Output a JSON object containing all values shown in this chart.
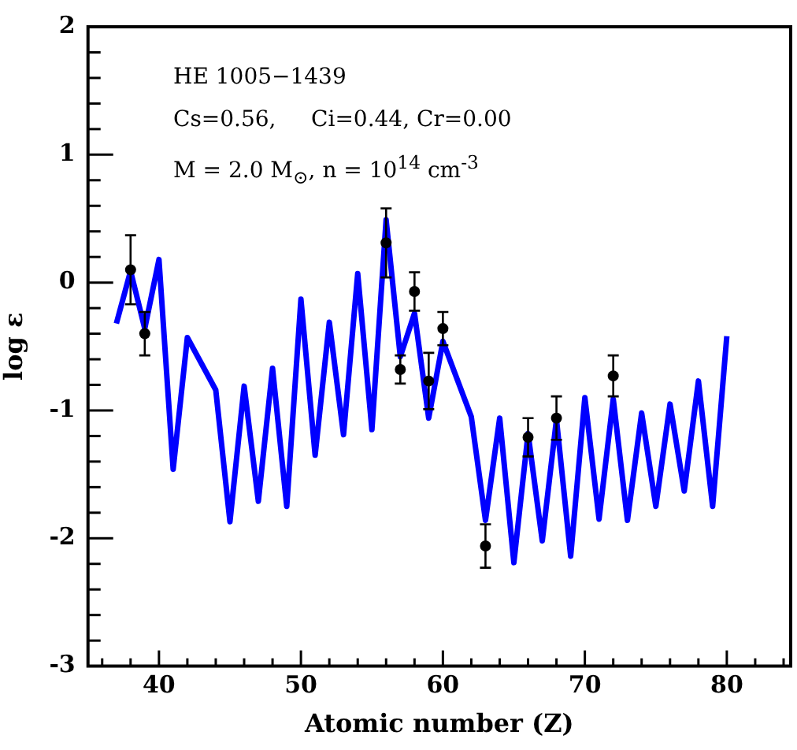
{
  "chart_data": {
    "type": "line",
    "xlabel": "Atomic number (Z)",
    "ylabel": "log ε",
    "annotations": [
      "HE 1005−1439",
      "Cs=0.56,     Ci=0.44, Cr=0.00",
      "M = 2.0 M$_{⊙}$, n = 10$^{14}$ cm$^{-3}$"
    ],
    "xlim": [
      35,
      84.5
    ],
    "ylim": [
      -3,
      2
    ],
    "xticks": [
      {
        "value": 36,
        "label": null
      },
      {
        "value": 38,
        "label": null
      },
      40,
      {
        "value": 42,
        "label": null
      },
      {
        "value": 44,
        "label": null
      },
      {
        "value": 46,
        "label": null
      },
      {
        "value": 48,
        "label": null
      },
      50,
      {
        "value": 52,
        "label": null
      },
      {
        "value": 54,
        "label": null
      },
      {
        "value": 56,
        "label": null
      },
      {
        "value": 58,
        "label": null
      },
      60,
      {
        "value": 62,
        "label": null
      },
      {
        "value": 64,
        "label": null
      },
      {
        "value": 66,
        "label": null
      },
      {
        "value": 68,
        "label": null
      },
      70,
      {
        "value": 72,
        "label": null
      },
      {
        "value": 74,
        "label": null
      },
      {
        "value": 76,
        "label": null
      },
      {
        "value": 78,
        "label": null
      },
      80,
      {
        "value": 82,
        "label": null
      },
      {
        "value": 84,
        "label": null
      }
    ],
    "yticks": [
      -3,
      {
        "value": -2.8,
        "label": null
      },
      {
        "value": -2.6,
        "label": null
      },
      {
        "value": -2.4,
        "label": null
      },
      {
        "value": -2.2,
        "label": null
      },
      -2,
      {
        "value": -1.8,
        "label": null
      },
      {
        "value": -1.6,
        "label": null
      },
      {
        "value": -1.4,
        "label": null
      },
      {
        "value": -1.2,
        "label": null
      },
      -1,
      {
        "value": -0.8,
        "label": null
      },
      {
        "value": -0.6,
        "label": null
      },
      {
        "value": -0.4,
        "label": null
      },
      {
        "value": -0.2,
        "label": null
      },
      0,
      {
        "value": 0.2,
        "label": null
      },
      {
        "value": 0.4,
        "label": null
      },
      {
        "value": 0.6,
        "label": null
      },
      {
        "value": 0.8,
        "label": null
      },
      1,
      {
        "value": 1.2,
        "label": null
      },
      {
        "value": 1.4,
        "label": null
      },
      {
        "value": 1.6,
        "label": null
      },
      {
        "value": 1.8,
        "label": null
      },
      2
    ],
    "grid": false,
    "legend": false,
    "series": [
      {
        "color": "#0000ff",
        "marker": "none",
        "line_style": "solid",
        "x": [
          37,
          38,
          39,
          40,
          41,
          42,
          44,
          45,
          46,
          47,
          48,
          49,
          50,
          51,
          52,
          53,
          54,
          55,
          56,
          57,
          58,
          59,
          60,
          62,
          63,
          64,
          65,
          66,
          67,
          68,
          69,
          70,
          71,
          72,
          73,
          74,
          75,
          76,
          77,
          78,
          79,
          80
        ],
        "values": [
          -0.32,
          0.09,
          -0.36,
          0.18,
          -1.46,
          -0.43,
          -0.84,
          -1.87,
          -0.81,
          -1.71,
          -0.67,
          -1.75,
          -0.13,
          -1.35,
          -0.31,
          -1.19,
          0.07,
          -1.15,
          0.49,
          -0.58,
          -0.24,
          -1.06,
          -0.46,
          -1.05,
          -1.86,
          -1.06,
          -2.19,
          -1.18,
          -2.02,
          -1.07,
          -2.14,
          -0.9,
          -1.85,
          -0.91,
          -1.86,
          -1.02,
          -1.75,
          -0.95,
          -1.63,
          -0.77,
          -1.75,
          -0.42
        ]
      },
      {
        "type": "scatter",
        "color": "#000000",
        "marker": "circle",
        "x": [
          38,
          39,
          56,
          57,
          58,
          59,
          60,
          63,
          66,
          68,
          72
        ],
        "values": [
          0.1,
          -0.4,
          0.31,
          -0.68,
          -0.07,
          -0.77,
          -0.36,
          -2.06,
          -1.21,
          -1.06,
          -0.73
        ],
        "errors": [
          0.27,
          0.17,
          0.27,
          0.11,
          0.15,
          0.22,
          0.13,
          0.17,
          0.15,
          0.17,
          0.16
        ]
      }
    ]
  }
}
